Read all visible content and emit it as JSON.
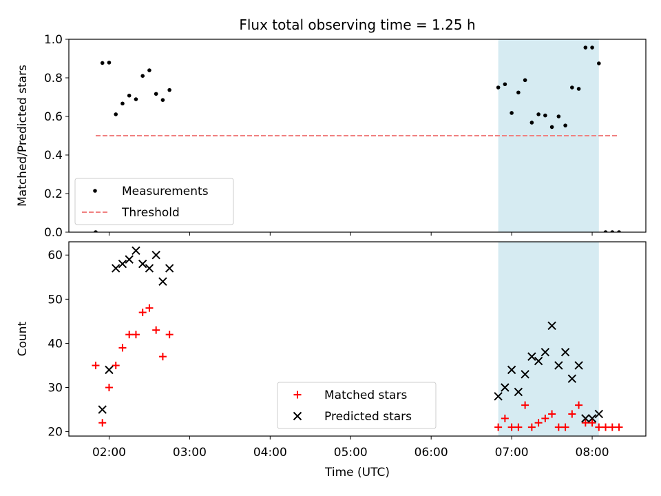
{
  "chart_data": [
    {
      "type": "scatter",
      "title": "Flux total observing time = 1.25 h",
      "xlabel": "",
      "ylabel": "Matched/Predicted stars",
      "x_unit": "time (UTC, HH:MM)",
      "xlim": [
        "01:30",
        "08:40"
      ],
      "ylim": [
        0.0,
        1.0
      ],
      "yticks": [
        "0.0",
        "0.2",
        "0.4",
        "0.6",
        "0.8",
        "1.0"
      ],
      "shaded_region": {
        "x": [
          "06:50",
          "08:05"
        ],
        "color": "#add8e6"
      },
      "grid": false,
      "legend_position": "lower-left",
      "series": [
        {
          "name": "Measurements",
          "marker": "dot",
          "color": "#000000",
          "points": [
            [
              "01:50",
              0.0
            ],
            [
              "01:55",
              0.877
            ],
            [
              "02:00",
              0.879
            ],
            [
              "02:05",
              0.611
            ],
            [
              "02:10",
              0.667
            ],
            [
              "02:15",
              0.708
            ],
            [
              "02:20",
              0.689
            ],
            [
              "02:25",
              0.81
            ],
            [
              "02:30",
              0.839
            ],
            [
              "02:35",
              0.717
            ],
            [
              "02:40",
              0.685
            ],
            [
              "02:45",
              0.737
            ],
            [
              "06:50",
              0.75
            ],
            [
              "06:55",
              0.767
            ],
            [
              "07:00",
              0.618
            ],
            [
              "07:05",
              0.724
            ],
            [
              "07:10",
              0.788
            ],
            [
              "07:15",
              0.568
            ],
            [
              "07:20",
              0.611
            ],
            [
              "07:25",
              0.605
            ],
            [
              "07:30",
              0.545
            ],
            [
              "07:35",
              0.6
            ],
            [
              "07:40",
              0.553
            ],
            [
              "07:45",
              0.75
            ],
            [
              "07:50",
              0.743
            ],
            [
              "07:55",
              0.957
            ],
            [
              "08:00",
              0.957
            ],
            [
              "08:05",
              0.875
            ],
            [
              "08:10",
              0.0
            ],
            [
              "08:15",
              0.0
            ],
            [
              "08:20",
              0.0
            ]
          ]
        },
        {
          "name": "Threshold",
          "line_style": "dashed",
          "color": "#f08080",
          "points": [
            [
              "01:50",
              0.5
            ],
            [
              "08:20",
              0.5
            ]
          ]
        }
      ]
    },
    {
      "type": "scatter",
      "title": "",
      "xlabel": "Time (UTC)",
      "ylabel": "Count",
      "x_unit": "time (UTC, HH:MM)",
      "xlim": [
        "01:30",
        "08:40"
      ],
      "ylim": [
        19,
        63
      ],
      "xticks": [
        "02:00",
        "03:00",
        "04:00",
        "05:00",
        "06:00",
        "07:00",
        "08:00"
      ],
      "yticks": [
        "20",
        "30",
        "40",
        "50",
        "60"
      ],
      "shaded_region": {
        "x": [
          "06:50",
          "08:05"
        ],
        "color": "#add8e6"
      },
      "grid": false,
      "legend_position": "lower-center",
      "series": [
        {
          "name": "Matched stars",
          "marker": "plus",
          "color": "#ff0000",
          "points": [
            [
              "01:50",
              35
            ],
            [
              "01:55",
              22
            ],
            [
              "02:00",
              30
            ],
            [
              "02:05",
              35
            ],
            [
              "02:10",
              39
            ],
            [
              "02:15",
              42
            ],
            [
              "02:20",
              42
            ],
            [
              "02:25",
              47
            ],
            [
              "02:30",
              48
            ],
            [
              "02:35",
              43
            ],
            [
              "02:40",
              37
            ],
            [
              "02:45",
              42
            ],
            [
              "06:50",
              21
            ],
            [
              "06:55",
              23
            ],
            [
              "07:00",
              21
            ],
            [
              "07:05",
              21
            ],
            [
              "07:10",
              26
            ],
            [
              "07:15",
              21
            ],
            [
              "07:20",
              22
            ],
            [
              "07:25",
              23
            ],
            [
              "07:30",
              24
            ],
            [
              "07:35",
              21
            ],
            [
              "07:40",
              21
            ],
            [
              "07:45",
              24
            ],
            [
              "07:50",
              26
            ],
            [
              "07:55",
              22
            ],
            [
              "08:00",
              22
            ],
            [
              "08:05",
              21
            ],
            [
              "08:10",
              21
            ],
            [
              "08:15",
              21
            ],
            [
              "08:20",
              21
            ]
          ]
        },
        {
          "name": "Predicted stars",
          "marker": "x",
          "color": "#000000",
          "points": [
            [
              "01:55",
              25
            ],
            [
              "02:00",
              34
            ],
            [
              "02:05",
              57
            ],
            [
              "02:10",
              58
            ],
            [
              "02:15",
              59
            ],
            [
              "02:20",
              61
            ],
            [
              "02:25",
              58
            ],
            [
              "02:30",
              57
            ],
            [
              "02:35",
              60
            ],
            [
              "02:40",
              54
            ],
            [
              "02:45",
              57
            ],
            [
              "06:50",
              28
            ],
            [
              "06:55",
              30
            ],
            [
              "07:00",
              34
            ],
            [
              "07:05",
              29
            ],
            [
              "07:10",
              33
            ],
            [
              "07:15",
              37
            ],
            [
              "07:20",
              36
            ],
            [
              "07:25",
              38
            ],
            [
              "07:30",
              44
            ],
            [
              "07:35",
              35
            ],
            [
              "07:40",
              38
            ],
            [
              "07:45",
              32
            ],
            [
              "07:50",
              35
            ],
            [
              "07:55",
              23
            ],
            [
              "08:00",
              23
            ],
            [
              "08:05",
              24
            ]
          ]
        }
      ]
    }
  ]
}
